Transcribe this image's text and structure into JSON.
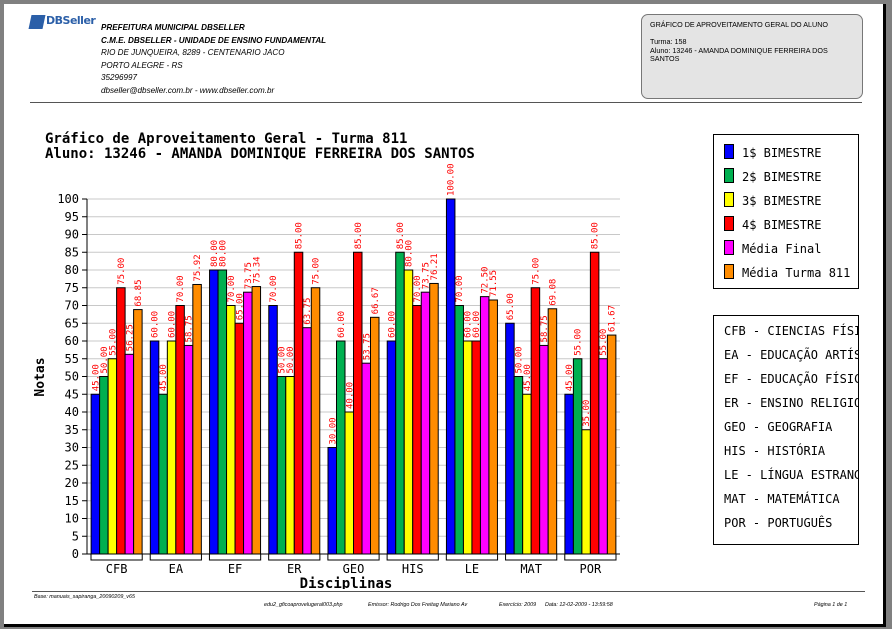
{
  "header": {
    "logo_text": "DBSeller",
    "org_lines": [
      "PREFEITURA MUNICIPAL DBSELLER",
      "C.M.E. DBSELLER - UNIDADE DE ENSINO FUNDAMENTAL",
      "RIO DE JUNQUEIRA, 8289 - CENTENARIO JACO",
      "PORTO ALEGRE - RS",
      "35296997",
      "dbseller@dbseller.com.br - www.dbseller.com.br"
    ],
    "info_title": "GRÁFICO DE APROVEITAMENTO GERAL DO ALUNO",
    "info_turma": "Turma: 158",
    "info_aluno_1": "Aluno: 13246 - AMANDA DOMINIQUE FERREIRA DOS",
    "info_aluno_2": "SANTOS"
  },
  "footer": {
    "base": "Base: manuais_sapiranga_20090209_v65",
    "program": "edu2_gficoaprovelugeral003.php",
    "emissor": "Emissor: Rodrigo Dos Freitag Mariano Av",
    "exercicio": "Exercício: 2009",
    "data": "Data: 12-02-2009 - 13:59:58",
    "pagina": "Página 1 de 1"
  },
  "colors": {
    "b1": "#0000ff",
    "b2": "#00b050",
    "b3": "#ffff00",
    "b4": "#ff0000",
    "final": "#ff00ff",
    "turma": "#ff8c00",
    "labels": "#ff0000"
  },
  "chart_data": {
    "type": "bar",
    "title": "Gráfico de Aproveitamento Geral - Turma 811",
    "subtitle": "Aluno: 13246 - AMANDA DOMINIQUE FERREIRA DOS SANTOS",
    "xlabel": "Disciplinas",
    "ylabel": "Notas",
    "ylim": [
      0,
      100
    ],
    "yticks": [
      0,
      5,
      10,
      15,
      20,
      25,
      30,
      35,
      40,
      45,
      50,
      55,
      60,
      65,
      70,
      75,
      80,
      85,
      90,
      95,
      100
    ],
    "grid": true,
    "legend_position": "right",
    "categories": [
      "CFB",
      "EA",
      "EF",
      "ER",
      "GEO",
      "HIS",
      "LE",
      "MAT",
      "POR"
    ],
    "series": [
      {
        "name": "1$ BIMESTRE",
        "values": [
          45,
          60,
          80,
          70,
          30,
          60,
          100,
          65,
          45
        ],
        "labels": [
          "45.00",
          "60.00",
          "80.00",
          "70.00",
          "30.00",
          "60.00",
          "100.00",
          "65.00",
          "45.00"
        ]
      },
      {
        "name": "2$ BIMESTRE",
        "values": [
          50,
          45,
          80,
          50,
          60,
          85,
          70,
          50,
          55
        ],
        "labels": [
          "50.00",
          "45.00",
          "80.00",
          "50.00",
          "60.00",
          "85.00",
          "70.00",
          "50.00",
          "55.00"
        ]
      },
      {
        "name": "3$ BIMESTRE",
        "values": [
          55,
          60,
          70,
          50,
          40,
          80,
          60,
          45,
          35
        ],
        "labels": [
          "55.00",
          "60.00",
          "70.00",
          "50.00",
          "40.00",
          "80.00",
          "60.00",
          "45.00",
          "35.00"
        ]
      },
      {
        "name": "4$ BIMESTRE",
        "values": [
          75,
          70,
          65,
          85,
          85,
          70,
          60,
          75,
          85
        ],
        "labels": [
          "75.00",
          "70.00",
          "65.00",
          "85.00",
          "85.00",
          "70.00",
          "60.00",
          "75.00",
          "85.00"
        ]
      },
      {
        "name": "Média Final",
        "values": [
          56.25,
          58.75,
          73.75,
          63.75,
          53.75,
          73.75,
          72.5,
          58.75,
          55
        ],
        "labels": [
          "56.25",
          "58.75",
          "73.75",
          "63.75",
          "53.75",
          "73.75",
          "72.50",
          "58.75",
          "55.00"
        ]
      },
      {
        "name": "Média Turma 811",
        "values": [
          68.85,
          75.92,
          75.34,
          75,
          66.67,
          76.21,
          71.55,
          69.08,
          61.67
        ],
        "labels": [
          "68.85",
          "75.92",
          "75.34",
          "75.00",
          "66.67",
          "76.21",
          "71.55",
          "69.08",
          "61.67"
        ]
      }
    ]
  },
  "subject_codes": [
    "CFB - CIENCIAS FÍSICA",
    "EA - EDUCAÇÃO ARTÍSTI",
    "EF - EDUCAÇÃO FÍSICA",
    "ER - ENSINO RELIGIOSO",
    "GEO - GEOGRAFIA",
    "HIS - HISTÓRIA",
    "LE - LÍNGUA ESTRANGEI",
    "MAT - MATEMÁTICA",
    "POR - PORTUGUÊS"
  ]
}
